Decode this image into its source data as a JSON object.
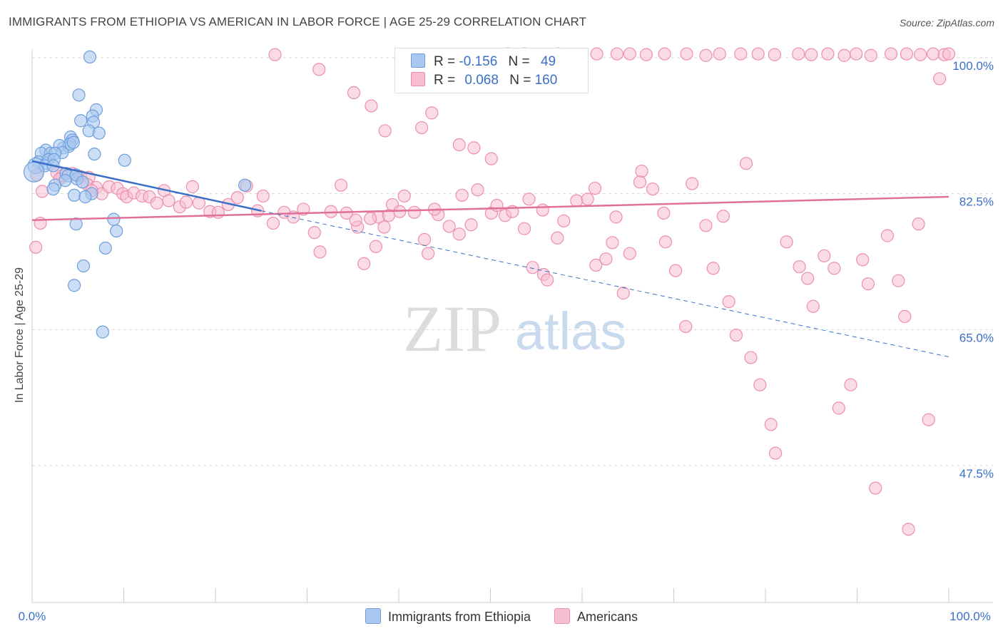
{
  "title": "IMMIGRANTS FROM ETHIOPIA VS AMERICAN IN LABOR FORCE | AGE 25-29 CORRELATION CHART",
  "source": "Source: ZipAtlas.com",
  "watermark": {
    "zip": "ZIP",
    "atlas": "atlas"
  },
  "colors": {
    "blue_fill": "#a9c8f0",
    "blue_stroke": "#6e9fdc",
    "blue_line": "#3a6fc8",
    "pink_fill": "#f7bed0",
    "pink_stroke": "#ec8fae",
    "pink_line": "#e07098",
    "axis_text": "#3a6fc8",
    "grid": "#d8d8d8"
  },
  "legend": {
    "rows": [
      {
        "r_label": "R =",
        "r_value": "-0.156",
        "n_label": "N =",
        "n_value": "49"
      },
      {
        "r_label": "R =",
        "r_value": "0.068",
        "n_label": "N =",
        "n_value": "160"
      }
    ]
  },
  "chart_data": {
    "type": "scatter",
    "xlabel": "",
    "ylabel": "In Labor Force | Age 25-29",
    "xlim": [
      0,
      100
    ],
    "ylim": [
      31,
      102
    ],
    "x_tick_labels": [
      "0.0%",
      "100.0%"
    ],
    "y_ticks": [
      {
        "value": 100,
        "label": "100.0%"
      },
      {
        "value": 82.5,
        "label": "82.5%"
      },
      {
        "value": 65,
        "label": "65.0%"
      },
      {
        "value": 47.5,
        "label": "47.5%"
      }
    ],
    "grid": "horizontal dashed",
    "legend_position": "bottom",
    "series": [
      {
        "name": "Immigrants from Ethiopia",
        "color": "blue",
        "points": [
          [
            6.3,
            100.1
          ],
          [
            5.1,
            95.2
          ],
          [
            7.0,
            93.3
          ],
          [
            6.6,
            92.5
          ],
          [
            5.3,
            91.9
          ],
          [
            6.7,
            91.7
          ],
          [
            6.2,
            90.6
          ],
          [
            7.3,
            90.3
          ],
          [
            4.2,
            89.8
          ],
          [
            4.4,
            89.4
          ],
          [
            3.4,
            88.4
          ],
          [
            4.0,
            88.6
          ],
          [
            4.1,
            88.9
          ],
          [
            4.5,
            89.1
          ],
          [
            3.0,
            88.7
          ],
          [
            3.3,
            87.8
          ],
          [
            1.5,
            88.1
          ],
          [
            1.0,
            87.7
          ],
          [
            2.0,
            87.7
          ],
          [
            2.5,
            87.7
          ],
          [
            6.8,
            87.6
          ],
          [
            10.1,
            86.8
          ],
          [
            0.7,
            86.6
          ],
          [
            1.6,
            86.4
          ],
          [
            1.8,
            86.9
          ],
          [
            2.4,
            86.9
          ],
          [
            0.4,
            86.1
          ],
          [
            1.4,
            86.1
          ],
          [
            2.3,
            86.1
          ],
          [
            0.2,
            85.3
          ],
          [
            3.7,
            85.1
          ],
          [
            3.9,
            84.8
          ],
          [
            3.6,
            84.2
          ],
          [
            4.9,
            84.4
          ],
          [
            4.8,
            84.9
          ],
          [
            5.5,
            84.0
          ],
          [
            2.5,
            83.6
          ],
          [
            2.3,
            83.1
          ],
          [
            4.6,
            82.3
          ],
          [
            6.5,
            82.5
          ],
          [
            23.2,
            83.6
          ],
          [
            5.8,
            82.1
          ],
          [
            8.9,
            79.2
          ],
          [
            4.8,
            78.6
          ],
          [
            9.2,
            77.7
          ],
          [
            8.0,
            75.5
          ],
          [
            5.6,
            73.2
          ],
          [
            4.6,
            70.7
          ],
          [
            7.7,
            64.7
          ]
        ],
        "sizes_note": "point at (0.2, 85.3) and (0.4, 86.1) drawn larger",
        "trend": {
          "x": [
            0,
            25
          ],
          "y": [
            86.7,
            80.3
          ],
          "extended": {
            "x": [
              25,
              100
            ],
            "y": [
              80.3,
              61.5
            ]
          }
        }
      },
      {
        "name": "Americans",
        "color": "pink",
        "points": [
          [
            0.5,
            84.9
          ],
          [
            1.1,
            82.8
          ],
          [
            0.9,
            78.7
          ],
          [
            0.4,
            75.6
          ],
          [
            2.7,
            85.2
          ],
          [
            3.3,
            84.8
          ],
          [
            3.0,
            84.4
          ],
          [
            4.4,
            85.1
          ],
          [
            5.3,
            84.7
          ],
          [
            6.2,
            84.6
          ],
          [
            6.0,
            83.7
          ],
          [
            7.0,
            83.3
          ],
          [
            6.5,
            82.9
          ],
          [
            7.6,
            82.5
          ],
          [
            8.4,
            83.4
          ],
          [
            9.3,
            83.2
          ],
          [
            9.9,
            82.5
          ],
          [
            10.3,
            82.1
          ],
          [
            11.1,
            82.6
          ],
          [
            12.0,
            82.2
          ],
          [
            12.8,
            82.1
          ],
          [
            13.6,
            81.3
          ],
          [
            14.4,
            82.9
          ],
          [
            14.9,
            81.6
          ],
          [
            16.1,
            80.8
          ],
          [
            16.8,
            81.4
          ],
          [
            17.5,
            83.4
          ],
          [
            18.2,
            81.3
          ],
          [
            19.4,
            80.2
          ],
          [
            20.3,
            80.1
          ],
          [
            21.4,
            81.1
          ],
          [
            22.4,
            82.0
          ],
          [
            23.4,
            83.5
          ],
          [
            24.6,
            80.3
          ],
          [
            25.2,
            82.2
          ],
          [
            26.3,
            78.7
          ],
          [
            27.5,
            80.1
          ],
          [
            28.5,
            79.5
          ],
          [
            29.6,
            80.5
          ],
          [
            30.8,
            77.5
          ],
          [
            31.4,
            75.0
          ],
          [
            32.6,
            80.2
          ],
          [
            33.7,
            83.6
          ],
          [
            34.3,
            80.0
          ],
          [
            35.5,
            78.2
          ],
          [
            36.2,
            73.5
          ],
          [
            37.5,
            75.7
          ],
          [
            37.8,
            79.5
          ],
          [
            38.4,
            78.2
          ],
          [
            39.3,
            81.1
          ],
          [
            40.1,
            80.2
          ],
          [
            40.6,
            82.2
          ],
          [
            41.7,
            80.1
          ],
          [
            42.8,
            76.6
          ],
          [
            43.2,
            74.8
          ],
          [
            44.3,
            79.8
          ],
          [
            45.5,
            78.3
          ],
          [
            46.6,
            77.3
          ],
          [
            47.9,
            78.5
          ],
          [
            48.6,
            83.0
          ],
          [
            50.1,
            80.0
          ],
          [
            50.7,
            81.0
          ],
          [
            51.6,
            79.7
          ],
          [
            52.4,
            80.2
          ],
          [
            53.7,
            78.0
          ],
          [
            54.6,
            73.0
          ],
          [
            55.8,
            72.1
          ],
          [
            56.2,
            71.4
          ],
          [
            57.3,
            76.8
          ],
          [
            58.0,
            79.0
          ],
          [
            59.4,
            81.6
          ],
          [
            60.6,
            81.8
          ],
          [
            61.5,
            73.3
          ],
          [
            62.6,
            74.1
          ],
          [
            63.3,
            76.2
          ],
          [
            64.5,
            69.7
          ],
          [
            65.2,
            74.8
          ],
          [
            66.5,
            85.4
          ],
          [
            67.7,
            83.1
          ],
          [
            68.9,
            80.0
          ],
          [
            69.1,
            76.3
          ],
          [
            70.2,
            72.6
          ],
          [
            71.3,
            65.4
          ],
          [
            72.0,
            83.8
          ],
          [
            73.5,
            78.4
          ],
          [
            74.3,
            72.9
          ],
          [
            75.4,
            79.6
          ],
          [
            76.0,
            68.6
          ],
          [
            76.8,
            64.3
          ],
          [
            77.9,
            86.4
          ],
          [
            78.4,
            61.4
          ],
          [
            79.4,
            57.9
          ],
          [
            80.6,
            52.8
          ],
          [
            81.1,
            49.1
          ],
          [
            82.3,
            76.3
          ],
          [
            83.7,
            73.1
          ],
          [
            84.6,
            71.6
          ],
          [
            85.2,
            68.0
          ],
          [
            86.4,
            74.5
          ],
          [
            87.5,
            72.9
          ],
          [
            88.0,
            54.9
          ],
          [
            89.3,
            57.9
          ],
          [
            90.6,
            74.0
          ],
          [
            91.2,
            70.9
          ],
          [
            92.0,
            44.6
          ],
          [
            93.3,
            77.1
          ],
          [
            94.5,
            71.3
          ],
          [
            95.2,
            66.7
          ],
          [
            95.6,
            39.3
          ],
          [
            96.7,
            78.6
          ],
          [
            97.8,
            53.4
          ],
          [
            99.0,
            97.3
          ],
          [
            26.5,
            100.4
          ],
          [
            31.3,
            98.5
          ],
          [
            35.1,
            95.5
          ],
          [
            37.0,
            93.8
          ],
          [
            38.5,
            90.6
          ],
          [
            40.5,
            97.3
          ],
          [
            42.5,
            91.0
          ],
          [
            43.6,
            92.9
          ],
          [
            45.1,
            97.9
          ],
          [
            46.6,
            88.8
          ],
          [
            48.2,
            88.4
          ],
          [
            50.1,
            87.0
          ],
          [
            51.9,
            100.5
          ],
          [
            53.7,
            100.5
          ],
          [
            55.3,
            100.2
          ],
          [
            57.4,
            100.5
          ],
          [
            59.7,
            100.4
          ],
          [
            61.6,
            100.5
          ],
          [
            63.8,
            100.5
          ],
          [
            65.2,
            100.5
          ],
          [
            67.0,
            100.4
          ],
          [
            69.0,
            100.5
          ],
          [
            71.4,
            100.5
          ],
          [
            73.5,
            100.3
          ],
          [
            75.0,
            100.5
          ],
          [
            77.3,
            100.5
          ],
          [
            79.2,
            100.5
          ],
          [
            81.0,
            100.4
          ],
          [
            83.6,
            100.5
          ],
          [
            85.0,
            100.4
          ],
          [
            86.8,
            100.5
          ],
          [
            88.6,
            100.3
          ],
          [
            89.9,
            100.5
          ],
          [
            91.5,
            100.3
          ],
          [
            93.7,
            100.5
          ],
          [
            95.4,
            100.5
          ],
          [
            96.9,
            100.4
          ],
          [
            98.3,
            100.5
          ],
          [
            99.5,
            100.4
          ],
          [
            100.0,
            100.5
          ],
          [
            35.3,
            79.1
          ],
          [
            36.9,
            79.3
          ],
          [
            43.9,
            80.5
          ],
          [
            38.9,
            79.7
          ],
          [
            46.9,
            82.3
          ],
          [
            55.7,
            80.4
          ],
          [
            54.2,
            81.8
          ],
          [
            63.7,
            79.5
          ],
          [
            66.3,
            84.0
          ],
          [
            61.4,
            83.2
          ]
        ],
        "trend": {
          "x": [
            0,
            100
          ],
          "y": [
            79.1,
            82.1
          ]
        }
      }
    ]
  },
  "bottom_legend": [
    {
      "label": "Immigrants from Ethiopia",
      "color": "blue"
    },
    {
      "label": "Americans",
      "color": "pink"
    }
  ]
}
